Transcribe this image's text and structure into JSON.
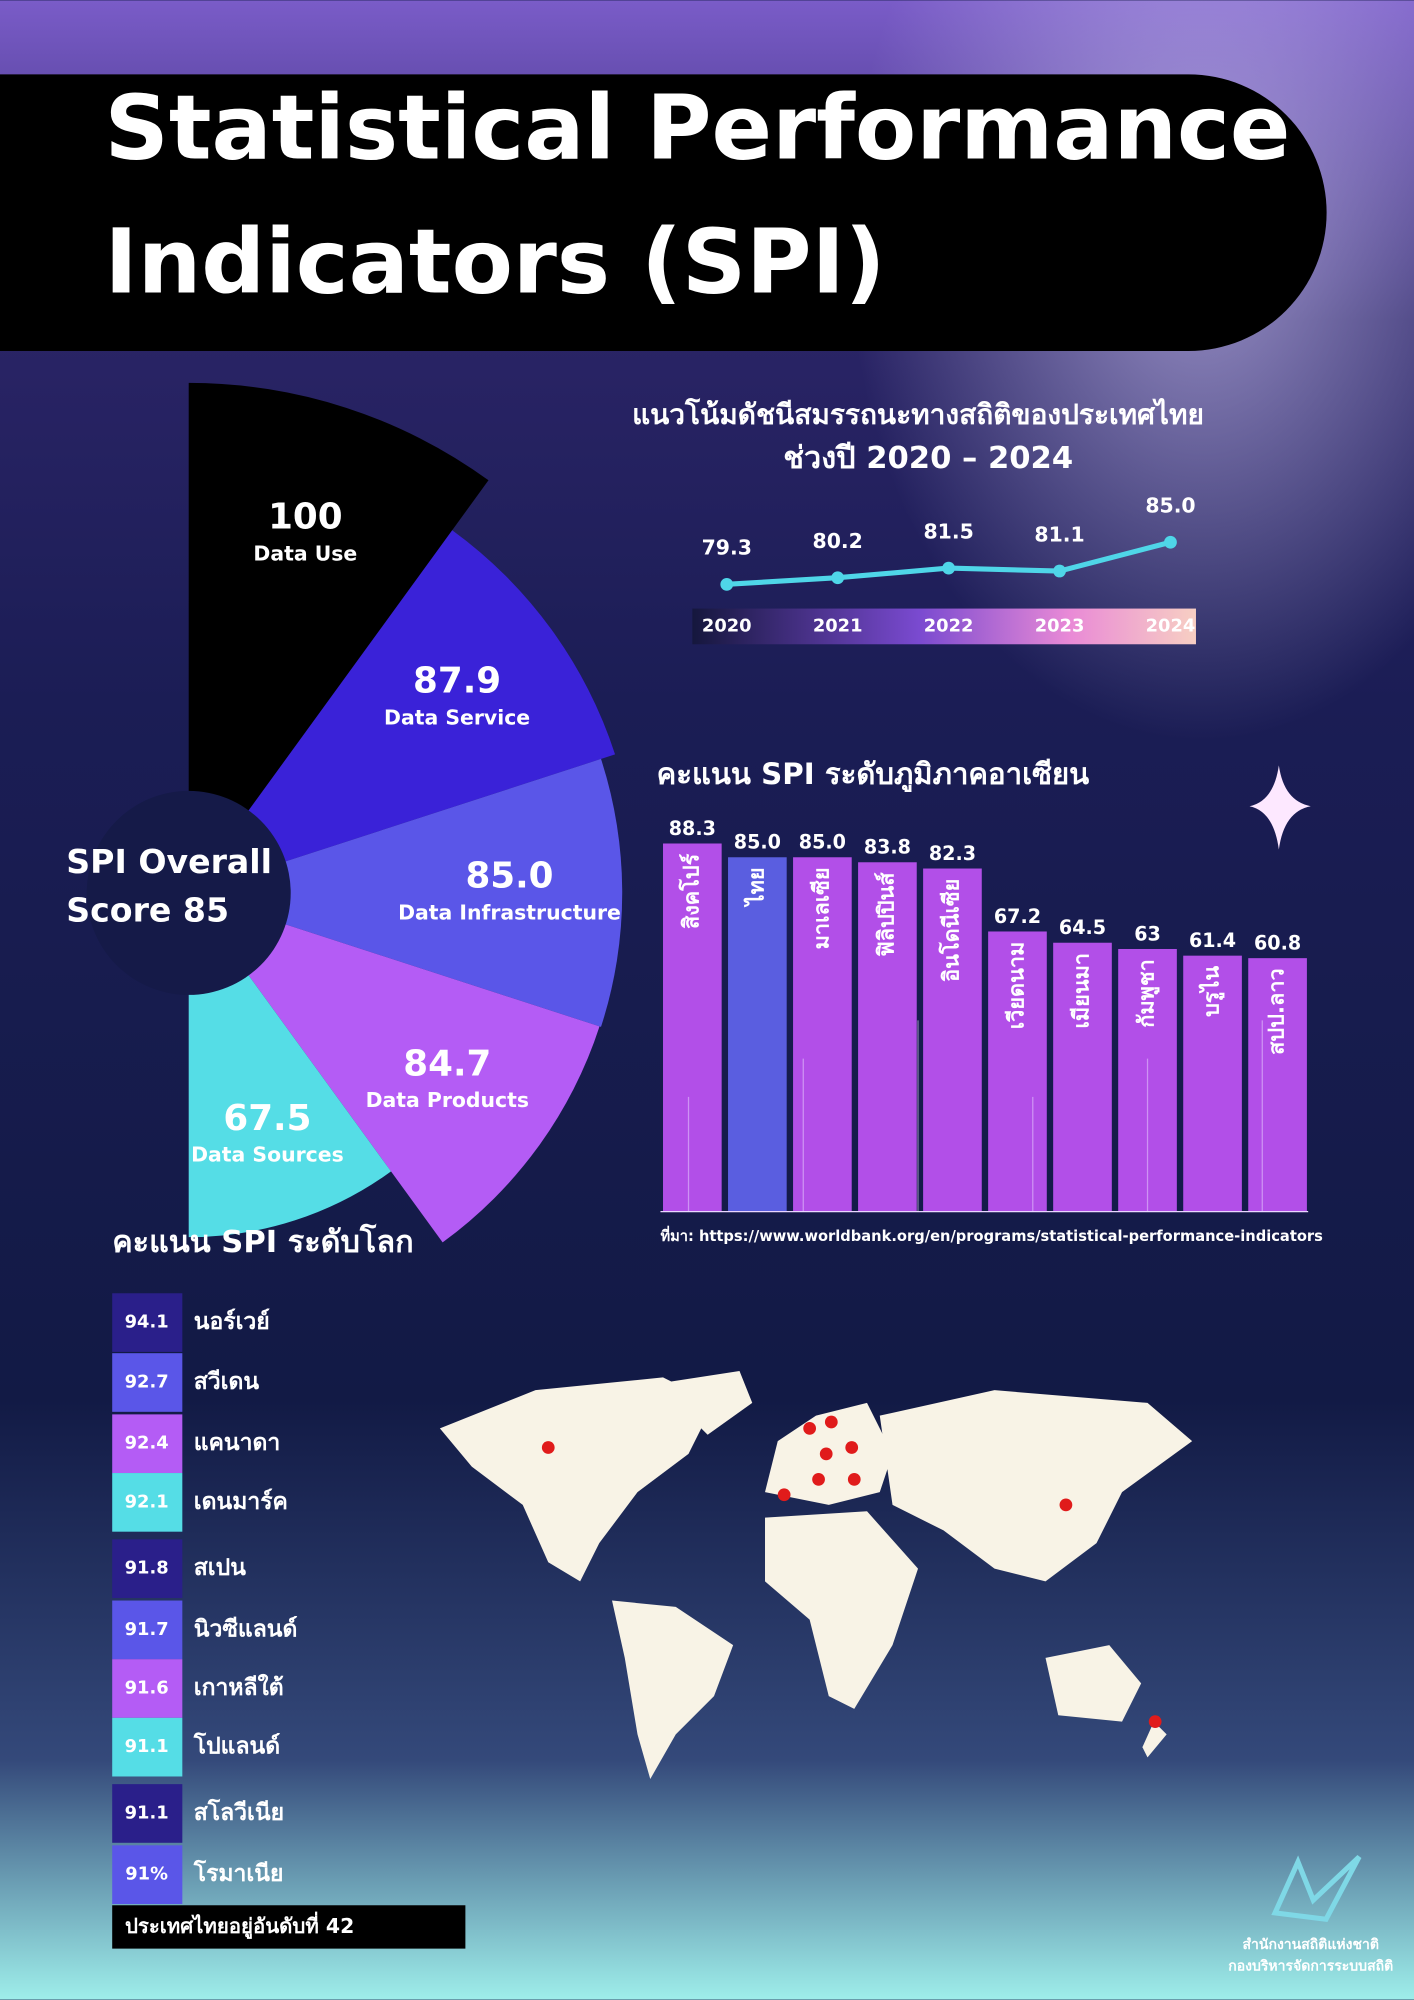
{
  "title": [
    "Statistical Performance",
    "Indicators (SPI)"
  ],
  "chart_data": [
    {
      "type": "polar",
      "center_label": [
        "SPI Overall",
        "Score 85"
      ],
      "categories": [
        "Data Use",
        "Data Service",
        "Data Infrastructure",
        "Data Products",
        "Data Sources"
      ],
      "values": [
        100,
        87.9,
        85.0,
        84.7,
        67.5
      ],
      "value_labels": [
        "100",
        "87.9",
        "85.0",
        "84.7",
        "67.5"
      ],
      "colors": [
        "#000000",
        "#3a22d8",
        "#5a56e8",
        "#b45cf5",
        "#55dde6"
      ]
    },
    {
      "type": "line",
      "title": "แนวโน้มดัชนีสมรรถนะทางสถิติของประเทศไทย",
      "subtitle": "ช่วงปี 2020 – 2024",
      "categories": [
        "2020",
        "2021",
        "2022",
        "2023",
        "2024"
      ],
      "values": [
        79.3,
        80.2,
        81.5,
        81.1,
        85.0
      ],
      "value_labels": [
        "79.3",
        "80.2",
        "81.5",
        "81.1",
        "85.0"
      ],
      "color": "#4fd6e8"
    },
    {
      "type": "bar",
      "title": "คะแนน SPI ระดับภูมิภาคอาเซียน",
      "categories": [
        "สิงคโปร์",
        "ไทย",
        "มาเลเซีย",
        "ฟิลิปปินส์",
        "อินโดนีเซีย",
        "เวียดนาม",
        "เมียนมา",
        "กัมพูชา",
        "บรูไน",
        "สปป.ลาว"
      ],
      "values": [
        88.3,
        85.0,
        85.0,
        83.8,
        82.3,
        67.2,
        64.5,
        63,
        61.4,
        60.8
      ],
      "value_labels": [
        "88.3",
        "85.0",
        "85.0",
        "83.8",
        "82.3",
        "67.2",
        "64.5",
        "63",
        "61.4",
        "60.8"
      ],
      "colors": [
        "#b24fe8",
        "#5a5ee0",
        "#b24fe8",
        "#b24fe8",
        "#b24fe8",
        "#b24fe8",
        "#b24fe8",
        "#b24fe8",
        "#b24fe8",
        "#b24fe8"
      ],
      "source": "ที่มา: https://www.worldbank.org/en/programs/statistical-performance-indicators"
    }
  ],
  "world_ranking": {
    "title": "คะแนน SPI ระดับโลก",
    "rows": [
      [
        "94.1",
        "นอร์เวย์"
      ],
      [
        "92.7",
        "สวีเดน"
      ],
      [
        "92.4",
        "แคนาดา"
      ],
      [
        "92.1",
        "เดนมาร์ค"
      ],
      [
        "91.8",
        "สเปน"
      ],
      [
        "91.7",
        "นิวซีแลนด์"
      ],
      [
        "91.6",
        "เกาหลีใต้"
      ],
      [
        "91.1",
        "โปแลนด์"
      ],
      [
        "91.1",
        "สโลวีเนีย"
      ],
      [
        "91%",
        "โรมาเนีย"
      ]
    ],
    "note": "ประเทศไทยอยู่อันดับที่ 42"
  },
  "footer": {
    "org": "สำนักงานสถิติแห่งชาติ",
    "division": "กองบริหารจัดการระบบสถิติ"
  }
}
